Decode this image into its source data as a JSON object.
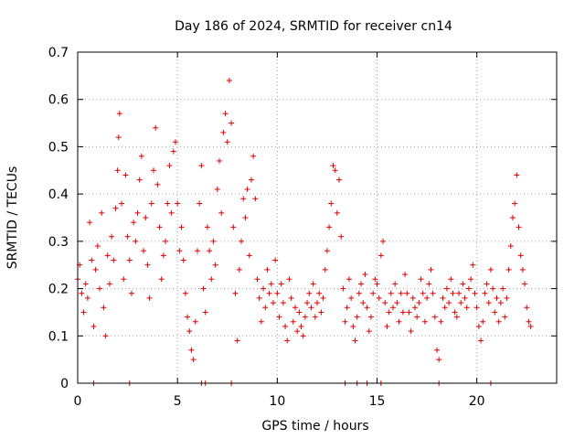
{
  "chart_data": {
    "type": "scatter",
    "title": "Day 186 of 2024, SRMTID for receiver cn14",
    "xlabel": "GPS time / hours",
    "ylabel": "SRMTID / TECUs",
    "xlim": [
      0,
      24
    ],
    "ylim": [
      0,
      0.7
    ],
    "xticks": [
      0,
      5,
      10,
      15,
      20
    ],
    "yticks": [
      0,
      0.1,
      0.2,
      0.3,
      0.4,
      0.5,
      0.6,
      0.7
    ],
    "xtick_labels": [
      "0",
      "5",
      "10",
      "15",
      "20"
    ],
    "ytick_labels": [
      "0",
      "0.1",
      "0.2",
      "0.3",
      "0.4",
      "0.5",
      "0.6",
      "0.7"
    ],
    "grid": true,
    "marker": "+",
    "color": "#e00000",
    "zero_points_x": [
      0.8,
      2.6,
      6.2,
      6.4,
      7.7,
      13.4,
      14.0,
      14.5,
      15.2,
      18.1,
      20.7
    ],
    "series": [
      {
        "name": "SRMTID",
        "points": [
          [
            0.0,
            0.22
          ],
          [
            0.1,
            0.25
          ],
          [
            0.2,
            0.19
          ],
          [
            0.3,
            0.15
          ],
          [
            0.4,
            0.21
          ],
          [
            0.5,
            0.18
          ],
          [
            0.6,
            0.34
          ],
          [
            0.7,
            0.26
          ],
          [
            0.8,
            0.12
          ],
          [
            0.9,
            0.24
          ],
          [
            1.0,
            0.29
          ],
          [
            1.1,
            0.2
          ],
          [
            1.2,
            0.36
          ],
          [
            1.3,
            0.16
          ],
          [
            1.4,
            0.1
          ],
          [
            1.5,
            0.27
          ],
          [
            1.6,
            0.21
          ],
          [
            1.7,
            0.31
          ],
          [
            1.8,
            0.26
          ],
          [
            1.9,
            0.37
          ],
          [
            2.0,
            0.45
          ],
          [
            2.05,
            0.52
          ],
          [
            2.1,
            0.57
          ],
          [
            2.2,
            0.38
          ],
          [
            2.3,
            0.22
          ],
          [
            2.4,
            0.44
          ],
          [
            2.5,
            0.31
          ],
          [
            2.6,
            0.26
          ],
          [
            2.7,
            0.19
          ],
          [
            2.8,
            0.34
          ],
          [
            2.9,
            0.3
          ],
          [
            3.0,
            0.36
          ],
          [
            3.1,
            0.43
          ],
          [
            3.2,
            0.48
          ],
          [
            3.3,
            0.28
          ],
          [
            3.4,
            0.35
          ],
          [
            3.5,
            0.25
          ],
          [
            3.6,
            0.18
          ],
          [
            3.7,
            0.38
          ],
          [
            3.8,
            0.45
          ],
          [
            3.9,
            0.54
          ],
          [
            4.0,
            0.42
          ],
          [
            4.1,
            0.33
          ],
          [
            4.2,
            0.22
          ],
          [
            4.3,
            0.27
          ],
          [
            4.4,
            0.3
          ],
          [
            4.5,
            0.38
          ],
          [
            4.6,
            0.46
          ],
          [
            4.7,
            0.36
          ],
          [
            4.8,
            0.49
          ],
          [
            4.9,
            0.51
          ],
          [
            5.0,
            0.38
          ],
          [
            5.1,
            0.28
          ],
          [
            5.2,
            0.33
          ],
          [
            5.3,
            0.26
          ],
          [
            5.4,
            0.19
          ],
          [
            5.5,
            0.14
          ],
          [
            5.6,
            0.11
          ],
          [
            5.7,
            0.07
          ],
          [
            5.8,
            0.05
          ],
          [
            5.9,
            0.13
          ],
          [
            6.0,
            0.28
          ],
          [
            6.1,
            0.38
          ],
          [
            6.2,
            0.46
          ],
          [
            6.3,
            0.2
          ],
          [
            6.4,
            0.15
          ],
          [
            6.5,
            0.33
          ],
          [
            6.6,
            0.28
          ],
          [
            6.7,
            0.22
          ],
          [
            6.8,
            0.3
          ],
          [
            6.9,
            0.25
          ],
          [
            7.0,
            0.41
          ],
          [
            7.1,
            0.47
          ],
          [
            7.2,
            0.36
          ],
          [
            7.3,
            0.53
          ],
          [
            7.4,
            0.57
          ],
          [
            7.5,
            0.51
          ],
          [
            7.6,
            0.64
          ],
          [
            7.7,
            0.55
          ],
          [
            7.8,
            0.33
          ],
          [
            7.9,
            0.19
          ],
          [
            8.0,
            0.09
          ],
          [
            8.1,
            0.24
          ],
          [
            8.2,
            0.3
          ],
          [
            8.3,
            0.39
          ],
          [
            8.4,
            0.35
          ],
          [
            8.5,
            0.41
          ],
          [
            8.6,
            0.27
          ],
          [
            8.7,
            0.43
          ],
          [
            8.8,
            0.48
          ],
          [
            8.9,
            0.39
          ],
          [
            9.0,
            0.22
          ],
          [
            9.1,
            0.18
          ],
          [
            9.2,
            0.13
          ],
          [
            9.3,
            0.2
          ],
          [
            9.4,
            0.16
          ],
          [
            9.5,
            0.24
          ],
          [
            9.6,
            0.19
          ],
          [
            9.7,
            0.21
          ],
          [
            9.8,
            0.17
          ],
          [
            9.9,
            0.26
          ],
          [
            10.0,
            0.19
          ],
          [
            10.1,
            0.14
          ],
          [
            10.2,
            0.21
          ],
          [
            10.3,
            0.17
          ],
          [
            10.4,
            0.12
          ],
          [
            10.5,
            0.09
          ],
          [
            10.6,
            0.22
          ],
          [
            10.7,
            0.18
          ],
          [
            10.8,
            0.13
          ],
          [
            10.9,
            0.16
          ],
          [
            11.0,
            0.11
          ],
          [
            11.1,
            0.15
          ],
          [
            11.2,
            0.12
          ],
          [
            11.3,
            0.1
          ],
          [
            11.4,
            0.14
          ],
          [
            11.5,
            0.17
          ],
          [
            11.6,
            0.19
          ],
          [
            11.7,
            0.16
          ],
          [
            11.8,
            0.21
          ],
          [
            11.9,
            0.14
          ],
          [
            12.0,
            0.17
          ],
          [
            12.1,
            0.19
          ],
          [
            12.2,
            0.15
          ],
          [
            12.3,
            0.18
          ],
          [
            12.4,
            0.24
          ],
          [
            12.5,
            0.28
          ],
          [
            12.6,
            0.33
          ],
          [
            12.7,
            0.38
          ],
          [
            12.8,
            0.46
          ],
          [
            12.9,
            0.45
          ],
          [
            13.0,
            0.36
          ],
          [
            13.1,
            0.43
          ],
          [
            13.2,
            0.31
          ],
          [
            13.3,
            0.2
          ],
          [
            13.4,
            0.13
          ],
          [
            13.5,
            0.16
          ],
          [
            13.6,
            0.22
          ],
          [
            13.7,
            0.18
          ],
          [
            13.8,
            0.12
          ],
          [
            13.9,
            0.09
          ],
          [
            14.0,
            0.14
          ],
          [
            14.1,
            0.19
          ],
          [
            14.2,
            0.21
          ],
          [
            14.3,
            0.17
          ],
          [
            14.4,
            0.23
          ],
          [
            14.5,
            0.16
          ],
          [
            14.6,
            0.11
          ],
          [
            14.7,
            0.14
          ],
          [
            14.8,
            0.19
          ],
          [
            14.9,
            0.22
          ],
          [
            15.0,
            0.21
          ],
          [
            15.1,
            0.18
          ],
          [
            15.2,
            0.27
          ],
          [
            15.3,
            0.3
          ],
          [
            15.4,
            0.17
          ],
          [
            15.5,
            0.12
          ],
          [
            15.6,
            0.15
          ],
          [
            15.7,
            0.19
          ],
          [
            15.8,
            0.16
          ],
          [
            15.9,
            0.21
          ],
          [
            16.0,
            0.17
          ],
          [
            16.1,
            0.13
          ],
          [
            16.2,
            0.19
          ],
          [
            16.3,
            0.15
          ],
          [
            16.4,
            0.23
          ],
          [
            16.5,
            0.19
          ],
          [
            16.6,
            0.15
          ],
          [
            16.7,
            0.11
          ],
          [
            16.8,
            0.18
          ],
          [
            16.9,
            0.16
          ],
          [
            17.0,
            0.14
          ],
          [
            17.1,
            0.17
          ],
          [
            17.2,
            0.22
          ],
          [
            17.3,
            0.19
          ],
          [
            17.4,
            0.13
          ],
          [
            17.5,
            0.18
          ],
          [
            17.6,
            0.21
          ],
          [
            17.7,
            0.24
          ],
          [
            17.8,
            0.19
          ],
          [
            17.9,
            0.14
          ],
          [
            18.0,
            0.07
          ],
          [
            18.1,
            0.05
          ],
          [
            18.2,
            0.13
          ],
          [
            18.3,
            0.18
          ],
          [
            18.4,
            0.16
          ],
          [
            18.5,
            0.2
          ],
          [
            18.6,
            0.17
          ],
          [
            18.7,
            0.22
          ],
          [
            18.8,
            0.19
          ],
          [
            18.9,
            0.15
          ],
          [
            19.0,
            0.14
          ],
          [
            19.1,
            0.19
          ],
          [
            19.2,
            0.17
          ],
          [
            19.3,
            0.21
          ],
          [
            19.4,
            0.18
          ],
          [
            19.5,
            0.16
          ],
          [
            19.6,
            0.2
          ],
          [
            19.7,
            0.22
          ],
          [
            19.8,
            0.25
          ],
          [
            19.9,
            0.19
          ],
          [
            20.0,
            0.16
          ],
          [
            20.1,
            0.12
          ],
          [
            20.2,
            0.09
          ],
          [
            20.3,
            0.13
          ],
          [
            20.4,
            0.19
          ],
          [
            20.5,
            0.21
          ],
          [
            20.6,
            0.17
          ],
          [
            20.7,
            0.24
          ],
          [
            20.8,
            0.2
          ],
          [
            20.9,
            0.15
          ],
          [
            21.0,
            0.18
          ],
          [
            21.1,
            0.13
          ],
          [
            21.2,
            0.17
          ],
          [
            21.3,
            0.2
          ],
          [
            21.4,
            0.14
          ],
          [
            21.5,
            0.18
          ],
          [
            21.6,
            0.24
          ],
          [
            21.7,
            0.29
          ],
          [
            21.8,
            0.35
          ],
          [
            21.9,
            0.38
          ],
          [
            22.0,
            0.44
          ],
          [
            22.1,
            0.33
          ],
          [
            22.2,
            0.27
          ],
          [
            22.3,
            0.24
          ],
          [
            22.4,
            0.21
          ],
          [
            22.5,
            0.16
          ],
          [
            22.6,
            0.13
          ],
          [
            22.7,
            0.12
          ]
        ]
      }
    ]
  }
}
